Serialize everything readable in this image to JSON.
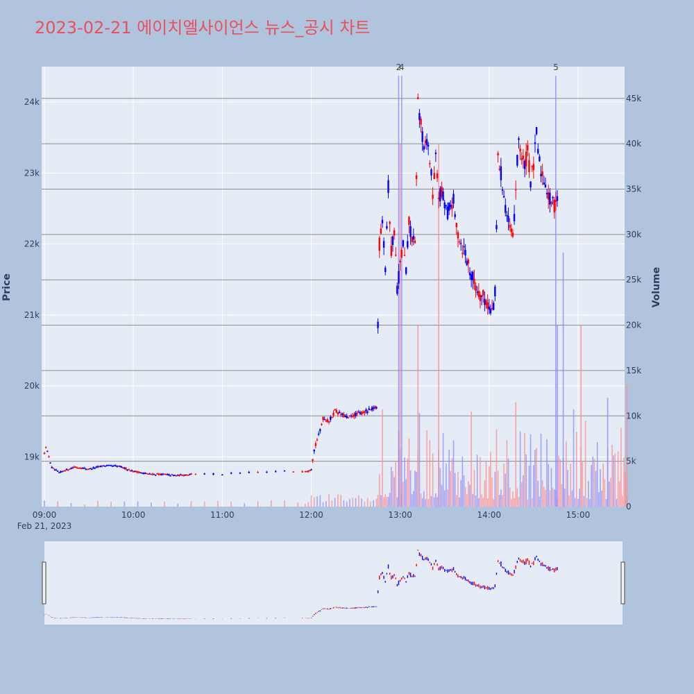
{
  "chart_data": {
    "type": "candlestick",
    "title": "2023-02-21 에이치엘사이언스 뉴스_공시 차트",
    "ylabel": "Price",
    "y2label": "Volume",
    "x_ticks": [
      "09:00",
      "10:00",
      "11:00",
      "12:00",
      "13:00",
      "14:00",
      "15:00"
    ],
    "x_date_label": "Feb 21, 2023",
    "y_ticks": [
      "19k",
      "20k",
      "21k",
      "22k",
      "23k",
      "24k"
    ],
    "y_tick_values": [
      19000,
      20000,
      21000,
      22000,
      23000,
      24000
    ],
    "y2_ticks": [
      "0",
      "5k",
      "10k",
      "15k",
      "20k",
      "25k",
      "30k",
      "35k",
      "40k",
      "45k"
    ],
    "y2_tick_values": [
      0,
      5000,
      10000,
      15000,
      20000,
      25000,
      30000,
      35000,
      40000,
      45000
    ],
    "ylim": [
      18300,
      24500
    ],
    "y2lim": [
      0,
      48500
    ],
    "xlim_minutes": [
      0,
      390
    ],
    "up_color": "#ff0000",
    "down_color": "#0000ff",
    "annotations": [
      {
        "label": "2",
        "t": 239
      },
      {
        "label": "4",
        "t": 241
      },
      {
        "label": "5",
        "t": 345
      }
    ],
    "volume_spikes": [
      {
        "t": 239,
        "v": 47500,
        "color": "#8a8aff"
      },
      {
        "t": 241,
        "v": 47500,
        "color": "#8a8aff"
      },
      {
        "t": 345,
        "v": 47500,
        "color": "#8a8aff"
      },
      {
        "t": 240,
        "v": 40000,
        "color": "#ff8a8a"
      },
      {
        "t": 252,
        "v": 20000,
        "color": "#ff8a8a"
      },
      {
        "t": 266,
        "v": 40000,
        "color": "#ff8a8a"
      },
      {
        "t": 346,
        "v": 20000,
        "color": "#8a8aff"
      },
      {
        "t": 350,
        "v": 28000,
        "color": "#8a8aff"
      },
      {
        "t": 380,
        "v": 12000,
        "color": "#8a8aff"
      },
      {
        "t": 362,
        "v": 20000,
        "color": "#ff8a8a"
      },
      {
        "t": 393,
        "v": 13500,
        "color": "#ff8a8a"
      }
    ],
    "price_path": [
      [
        0,
        19050
      ],
      [
        1,
        19150
      ],
      [
        5,
        18850
      ],
      [
        10,
        18780
      ],
      [
        20,
        18860
      ],
      [
        30,
        18830
      ],
      [
        40,
        18880
      ],
      [
        50,
        18870
      ],
      [
        60,
        18800
      ],
      [
        70,
        18760
      ],
      [
        80,
        18755
      ],
      [
        90,
        18740
      ],
      [
        100,
        18760
      ],
      [
        110,
        18760
      ],
      [
        120,
        18760
      ],
      [
        130,
        18770
      ],
      [
        140,
        18780
      ],
      [
        150,
        18790
      ],
      [
        160,
        18800
      ],
      [
        170,
        18800
      ],
      [
        178,
        18800
      ],
      [
        180,
        18850
      ],
      [
        182,
        19100
      ],
      [
        185,
        19300
      ],
      [
        188,
        19550
      ],
      [
        192,
        19500
      ],
      [
        196,
        19650
      ],
      [
        200,
        19600
      ],
      [
        205,
        19550
      ],
      [
        210,
        19600
      ],
      [
        214,
        19620
      ],
      [
        218,
        19650
      ],
      [
        222,
        19680
      ],
      [
        224,
        19700
      ],
      [
        225,
        20900
      ],
      [
        226,
        22000
      ],
      [
        228,
        22400
      ],
      [
        230,
        21700
      ],
      [
        232,
        22800
      ],
      [
        234,
        21900
      ],
      [
        236,
        22200
      ],
      [
        238,
        21400
      ],
      [
        240,
        21700
      ],
      [
        242,
        22000
      ],
      [
        244,
        21600
      ],
      [
        246,
        22300
      ],
      [
        248,
        22100
      ],
      [
        250,
        21950
      ],
      [
        252,
        24000
      ],
      [
        254,
        23700
      ],
      [
        256,
        23300
      ],
      [
        258,
        23500
      ],
      [
        260,
        23200
      ],
      [
        262,
        22700
      ],
      [
        264,
        23200
      ],
      [
        266,
        22700
      ],
      [
        268,
        22700
      ],
      [
        270,
        22600
      ],
      [
        272,
        22450
      ],
      [
        274,
        22550
      ],
      [
        276,
        22600
      ],
      [
        278,
        22200
      ],
      [
        280,
        22100
      ],
      [
        282,
        21950
      ],
      [
        284,
        21900
      ],
      [
        286,
        21700
      ],
      [
        288,
        21600
      ],
      [
        290,
        21450
      ],
      [
        292,
        21350
      ],
      [
        294,
        21300
      ],
      [
        296,
        21250
      ],
      [
        298,
        21200
      ],
      [
        300,
        21100
      ],
      [
        302,
        21050
      ],
      [
        304,
        21300
      ],
      [
        306,
        23200
      ],
      [
        308,
        23000
      ],
      [
        310,
        22700
      ],
      [
        312,
        22400
      ],
      [
        314,
        22200
      ],
      [
        316,
        22050
      ],
      [
        318,
        22800
      ],
      [
        320,
        23500
      ],
      [
        322,
        23200
      ],
      [
        324,
        23100
      ],
      [
        326,
        23300
      ],
      [
        328,
        22900
      ],
      [
        330,
        23100
      ],
      [
        332,
        23550
      ],
      [
        334,
        23150
      ],
      [
        336,
        22950
      ],
      [
        338,
        22900
      ],
      [
        340,
        22650
      ],
      [
        342,
        22600
      ],
      [
        344,
        22550
      ],
      [
        346,
        22700
      ]
    ]
  }
}
